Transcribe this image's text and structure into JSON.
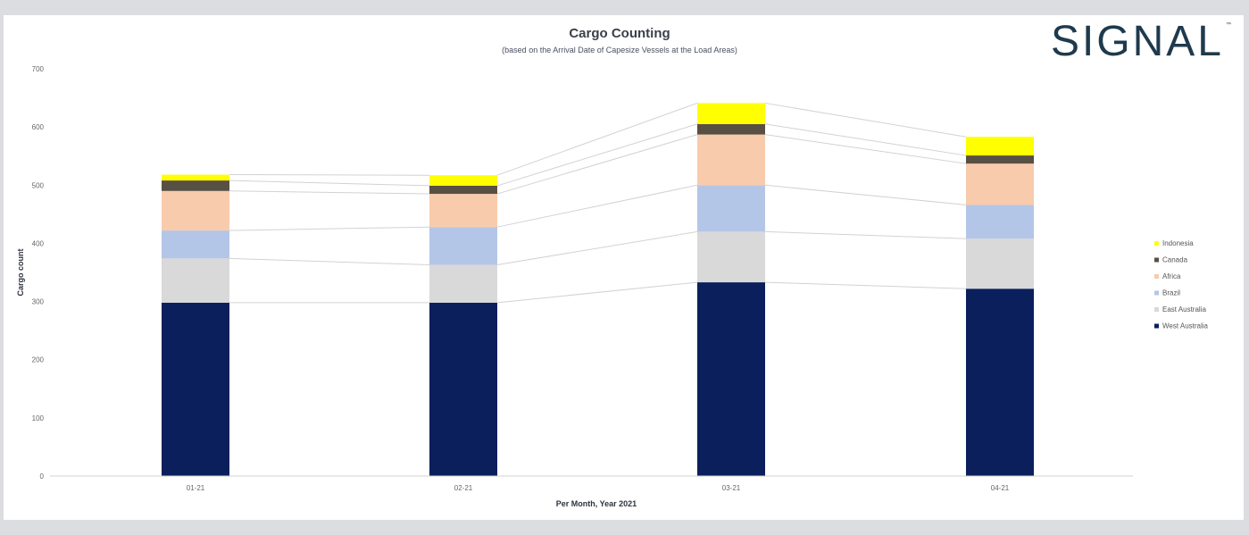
{
  "header": {
    "title": "Cargo Counting",
    "subtitle": "(based on the Arrival Date of Capesize Vessels at the Load Areas)",
    "logo_text": "SIGNAL",
    "logo_mark": "™"
  },
  "chart_data": {
    "type": "bar",
    "stacked": true,
    "categories": [
      "01-21",
      "02-21",
      "03-21",
      "04-21"
    ],
    "xlabel": "Per Month, Year 2021",
    "ylabel": "Cargo count",
    "ylim": [
      0,
      700
    ],
    "yticks": [
      0,
      100,
      200,
      300,
      400,
      500,
      600,
      700
    ],
    "grid": false,
    "legend_position": "right",
    "series": [
      {
        "name": "West Australia",
        "color": "#0a1f5c",
        "values": [
          298,
          298,
          333,
          322
        ]
      },
      {
        "name": "East Australia",
        "color": "#d9d9d9",
        "values": [
          76,
          65,
          87,
          86
        ]
      },
      {
        "name": "Brazil",
        "color": "#b4c6e7",
        "values": [
          48,
          65,
          80,
          58
        ]
      },
      {
        "name": "Africa",
        "color": "#f8cbad",
        "values": [
          68,
          57,
          87,
          71
        ]
      },
      {
        "name": "Canada",
        "color": "#595044",
        "values": [
          18,
          14,
          18,
          14
        ]
      },
      {
        "name": "Indonesia",
        "color": "#ffff00",
        "values": [
          10,
          18,
          36,
          32
        ]
      }
    ]
  }
}
